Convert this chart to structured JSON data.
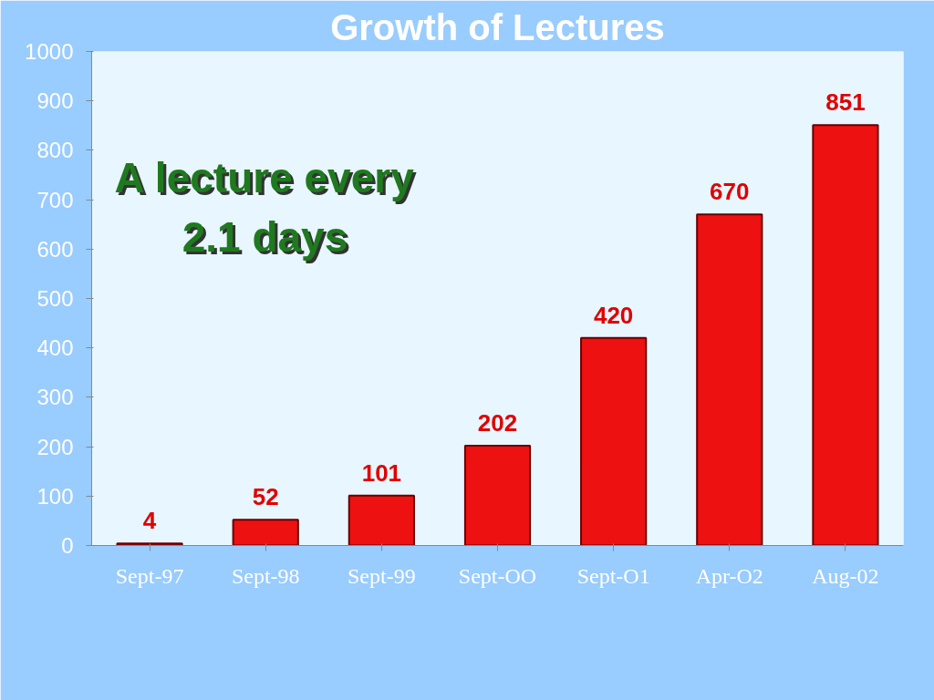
{
  "chart_data": {
    "type": "bar",
    "title": "Growth of Lectures",
    "categories": [
      "Sept-97",
      "Sept-98",
      "Sept-99",
      "Sept-OO",
      "Sept-O1",
      "Apr-O2",
      "Aug-02"
    ],
    "values": [
      4,
      52,
      101,
      202,
      420,
      670,
      851
    ],
    "color": "#ee1111",
    "ylim": [
      0,
      1000
    ],
    "yticks": [
      0,
      100,
      200,
      300,
      400,
      500,
      600,
      700,
      800,
      900,
      1000
    ],
    "data_labels": true,
    "grid": false,
    "annotations": [
      "A lecture every\n2.1 days"
    ]
  }
}
